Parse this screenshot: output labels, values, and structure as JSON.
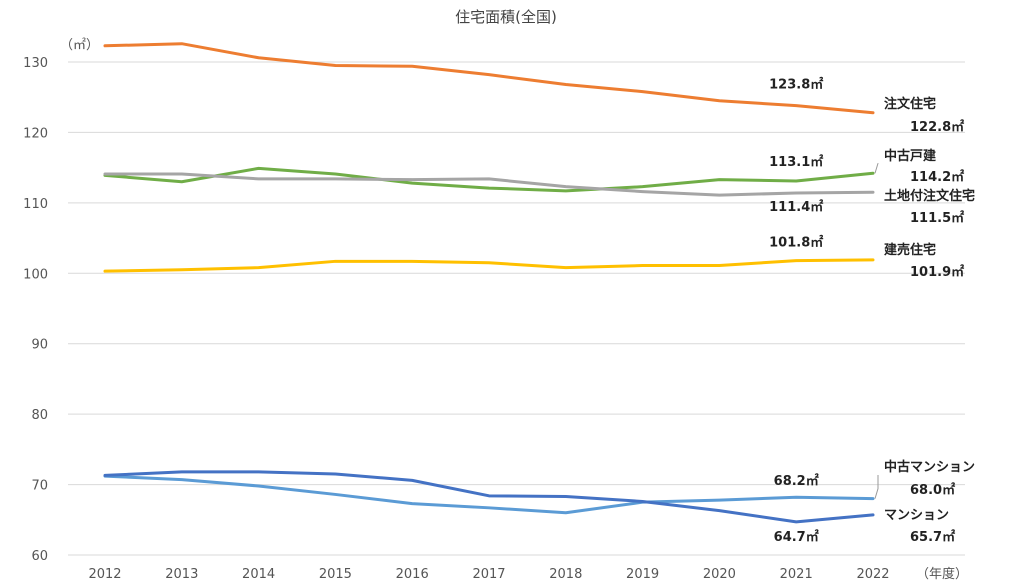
{
  "chart_data": {
    "type": "line",
    "title": "住宅面積(全国)",
    "ylabel": "（㎡）",
    "xlabel": "（年度）",
    "ylim": [
      60,
      130
    ],
    "yticks": [
      60,
      70,
      80,
      90,
      100,
      110,
      120,
      130
    ],
    "grid": true,
    "categories": [
      "2012",
      "2013",
      "2014",
      "2015",
      "2016",
      "2017",
      "2018",
      "2019",
      "2020",
      "2021",
      "2022"
    ],
    "series": [
      {
        "name": "注文住宅",
        "color": "#ed7d31",
        "values": [
          132.3,
          132.6,
          130.6,
          129.5,
          129.4,
          128.2,
          126.8,
          125.8,
          124.5,
          123.8,
          122.8
        ],
        "annotations": [
          {
            "index": 9,
            "text": "123.8㎡"
          }
        ],
        "end_label": [
          "注文住宅",
          "122.8㎡"
        ]
      },
      {
        "name": "中古戸建",
        "color": "#70ad47",
        "values": [
          113.9,
          113.0,
          114.9,
          114.1,
          112.8,
          112.1,
          111.7,
          112.3,
          113.3,
          113.1,
          114.2
        ],
        "annotations": [
          {
            "index": 9,
            "text": "113.1㎡"
          }
        ],
        "end_label": [
          "中古戸建",
          "114.2㎡"
        ]
      },
      {
        "name": "土地付注文住宅",
        "color": "#a5a5a5",
        "values": [
          114.1,
          114.1,
          113.4,
          113.4,
          113.3,
          113.4,
          112.3,
          111.6,
          111.1,
          111.4,
          111.5
        ],
        "annotations": [
          {
            "index": 9,
            "text": "111.4㎡"
          }
        ],
        "end_label": [
          "土地付注文住宅",
          "111.5㎡"
        ]
      },
      {
        "name": "建売住宅",
        "color": "#ffc000",
        "values": [
          100.3,
          100.5,
          100.8,
          101.7,
          101.7,
          101.5,
          100.8,
          101.1,
          101.1,
          101.8,
          101.9
        ],
        "annotations": [
          {
            "index": 9,
            "text": "101.8㎡"
          }
        ],
        "end_label": [
          "建売住宅",
          "101.9㎡"
        ]
      },
      {
        "name": "中古マンション",
        "color": "#5b9bd5",
        "values": [
          71.2,
          70.7,
          69.8,
          68.6,
          67.3,
          66.7,
          66.0,
          67.5,
          67.8,
          68.2,
          68.0
        ],
        "annotations": [
          {
            "index": 9,
            "text": "68.2㎡"
          }
        ],
        "end_label": [
          "中古マンション",
          "68.0㎡"
        ]
      },
      {
        "name": "マンション",
        "color": "#4472c4",
        "values": [
          71.3,
          71.8,
          71.8,
          71.5,
          70.6,
          68.4,
          68.3,
          67.6,
          66.3,
          64.7,
          65.7
        ],
        "annotations": [
          {
            "index": 9,
            "text": "64.7㎡"
          }
        ],
        "end_label": [
          "マンション",
          "65.7㎡"
        ]
      }
    ]
  }
}
